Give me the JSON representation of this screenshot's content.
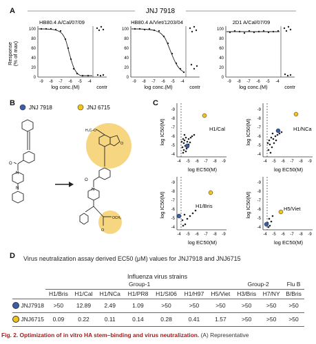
{
  "panels": {
    "a": "A",
    "b": "B",
    "c": "C",
    "d": "D"
  },
  "panelA": {
    "title": "JNJ 7918",
    "plots": [
      {
        "subtitle": "HB80.4 A/Cal/07/09",
        "xlabel": "log conc.(M)",
        "contr": "contr"
      },
      {
        "subtitle": "HB80.4 A/Viet/1203/04",
        "xlabel": "log conc.(M)",
        "contr": "contr"
      },
      {
        "subtitle": "2D1 A/Cal/07/09",
        "xlabel": "log conc.(M)",
        "contr": "contr"
      }
    ],
    "ylabel_line1": "Response",
    "ylabel_line2": "(% of max)",
    "yticks": [
      "100",
      "80",
      "60",
      "40",
      "20",
      "0"
    ],
    "xticks": [
      "-9",
      "-8",
      "-7",
      "-6",
      "-5",
      "-4"
    ]
  },
  "panelB": {
    "compound1": "JNJ 7918",
    "compound2": "JNJ 6715",
    "dot1_color": "#3a5fa8",
    "dot2_color": "#f0c419"
  },
  "panelC": {
    "plots": [
      {
        "label": "H1/Cal"
      },
      {
        "label": "H1/NCa"
      },
      {
        "label": "H1/Bris"
      },
      {
        "label": "H5/Viet"
      }
    ],
    "ylabel": "log IC50(M)",
    "xlabel": "log EC50(M)",
    "ticks": [
      "-4",
      "-5",
      "-6",
      "-7",
      "-8",
      "-9"
    ]
  },
  "panelD": {
    "title": "Virus neutralization assay derived  EC50 (μM) values for JNJ7918 and JNJ6715",
    "header_main": "Influenza virus strains",
    "groups": [
      "Group-1",
      "Group-2",
      "Flu B"
    ],
    "columns": [
      "H1/Bris",
      "H1/Cal",
      "H1/NCa",
      "H1/PR8",
      "H1/SI06",
      "H1/H97",
      "H5/Viet",
      "H3/Bris",
      "H7/NY",
      "B/Bris"
    ],
    "rows": [
      {
        "name": "JNJ7918",
        "dot": "#3a5fa8",
        "values": [
          ">50",
          "12.89",
          "2.49",
          "1.09",
          ">50",
          ">50",
          ">50",
          ">50",
          ">50",
          ">50"
        ]
      },
      {
        "name": "JNJ6715",
        "dot": "#f0c419",
        "values": [
          "0.09",
          "0.22",
          "0.11",
          "0.14",
          "0.28",
          "0.41",
          "1.57",
          ">50",
          ">50",
          ">50"
        ]
      }
    ]
  },
  "caption": {
    "bold": "Fig. 2. Optimization of in vitro HA stem–binding and virus neutralization.",
    "rest": " (A) Representative"
  }
}
